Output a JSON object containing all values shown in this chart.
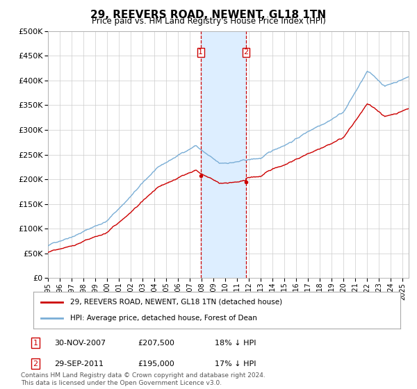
{
  "title": "29, REEVERS ROAD, NEWENT, GL18 1TN",
  "subtitle": "Price paid vs. HM Land Registry's House Price Index (HPI)",
  "ylim": [
    0,
    500000
  ],
  "yticks": [
    0,
    50000,
    100000,
    150000,
    200000,
    250000,
    300000,
    350000,
    400000,
    450000,
    500000
  ],
  "xlim_start": 1995.0,
  "xlim_end": 2025.5,
  "line1_color": "#cc0000",
  "line2_color": "#7aaed6",
  "vline1_x": 2007.917,
  "vline2_x": 2011.75,
  "shade_color": "#ddeeff",
  "transaction1_price": 207500,
  "transaction2_price": 195000,
  "transaction1_year": 2007.917,
  "transaction2_year": 2011.75,
  "transaction1_date": "30-NOV-2007",
  "transaction2_date": "29-SEP-2011",
  "transaction1_price_str": "£207,500",
  "transaction2_price_str": "£195,000",
  "transaction1_hpi": "18% ↓ HPI",
  "transaction2_hpi": "17% ↓ HPI",
  "legend1_label": "29, REEVERS ROAD, NEWENT, GL18 1TN (detached house)",
  "legend2_label": "HPI: Average price, detached house, Forest of Dean",
  "footnote": "Contains HM Land Registry data © Crown copyright and database right 2024.\nThis data is licensed under the Open Government Licence v3.0.",
  "background_color": "#ffffff",
  "grid_color": "#cccccc"
}
